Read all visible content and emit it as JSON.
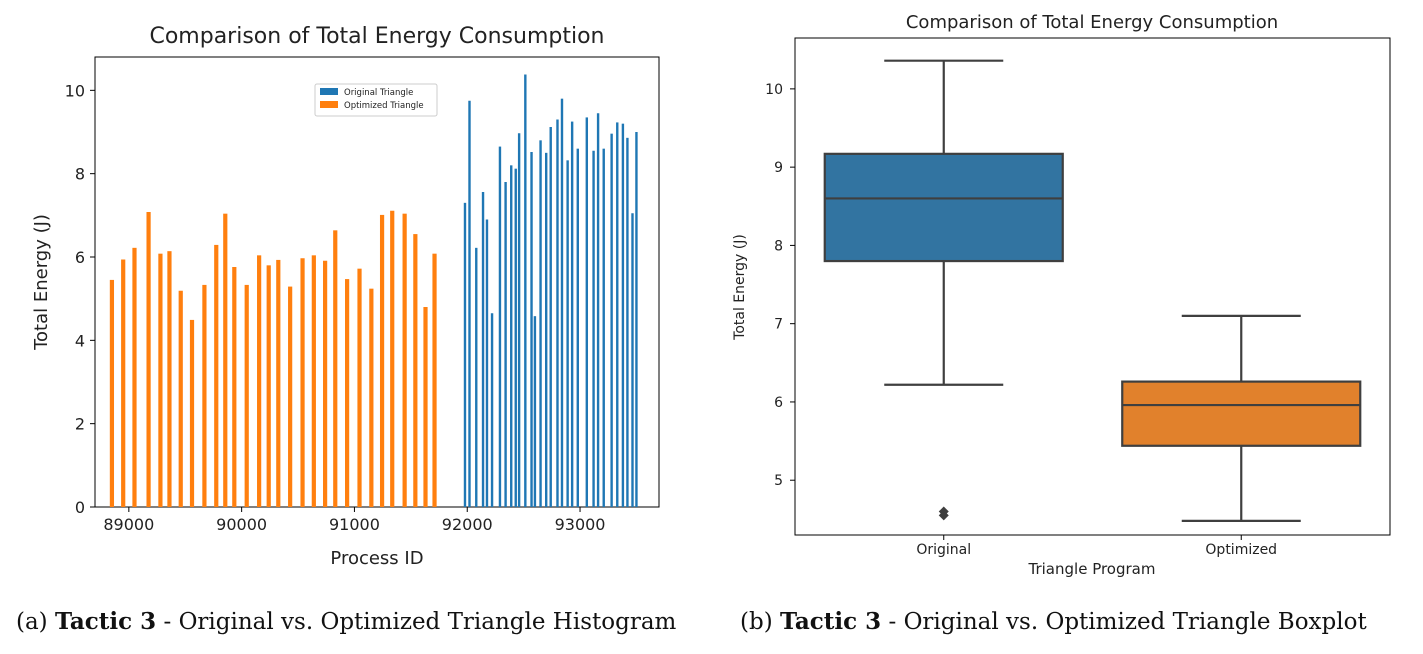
{
  "chart_data": [
    {
      "type": "bar",
      "title": "Comparison of Total Energy Consumption",
      "xlabel": "Process ID",
      "ylabel": "Total Energy (J)",
      "xlim": [
        88700,
        93700
      ],
      "ylim": [
        0,
        10.8
      ],
      "xticks": [
        89000,
        90000,
        91000,
        92000,
        93000
      ],
      "yticks": [
        0,
        2,
        4,
        6,
        8,
        10
      ],
      "legend_position": "upper center",
      "series": [
        {
          "name": "Original Triangle",
          "color": "#1f77b4",
          "x": [
            91980,
            92020,
            92080,
            92140,
            92175,
            92220,
            92290,
            92340,
            92390,
            92430,
            92460,
            92515,
            92570,
            92600,
            92650,
            92700,
            92740,
            92800,
            92840,
            92890,
            92930,
            92980,
            93060,
            93120,
            93160,
            93210,
            93280,
            93330,
            93380,
            93420,
            93465,
            93500
          ],
          "values": [
            7.3,
            9.75,
            6.22,
            7.56,
            6.9,
            4.65,
            8.65,
            7.8,
            8.2,
            8.12,
            8.97,
            10.38,
            8.52,
            4.58,
            8.8,
            8.5,
            9.12,
            9.3,
            9.8,
            8.32,
            9.25,
            8.6,
            9.35,
            8.55,
            9.45,
            8.6,
            8.96,
            9.23,
            9.2,
            8.86,
            7.05,
            9.0
          ]
        },
        {
          "name": "Optimized Triangle",
          "color": "#ff7f0e",
          "x": [
            88850,
            88950,
            89050,
            89175,
            89280,
            89360,
            89460,
            89560,
            89670,
            89775,
            89855,
            89935,
            90045,
            90155,
            90240,
            90325,
            90430,
            90540,
            90640,
            90740,
            90830,
            90935,
            91045,
            91150,
            91245,
            91335,
            91445,
            91540,
            91630,
            91710
          ],
          "values": [
            5.45,
            5.94,
            6.22,
            7.08,
            6.08,
            6.14,
            5.19,
            4.49,
            5.33,
            6.29,
            7.04,
            5.76,
            5.33,
            6.04,
            5.8,
            5.93,
            5.29,
            5.97,
            6.04,
            5.91,
            6.64,
            5.47,
            5.72,
            5.24,
            7.01,
            7.11,
            7.04,
            6.55,
            4.8,
            6.08
          ]
        }
      ]
    },
    {
      "type": "box",
      "title": "Comparison of Total Energy Consumption",
      "xlabel": "Triangle Program",
      "ylabel": "Total Energy (J)",
      "ylim": [
        4.3,
        10.65
      ],
      "yticks": [
        5,
        6,
        7,
        8,
        9,
        10
      ],
      "categories": [
        "Original",
        "Optimized"
      ],
      "boxes": [
        {
          "label": "Original",
          "color": "#3274a1",
          "whisker_low": 6.22,
          "q1": 7.8,
          "median": 8.6,
          "q3": 9.17,
          "whisker_high": 10.36,
          "outliers": [
            4.55,
            4.6
          ]
        },
        {
          "label": "Optimized",
          "color": "#e1812c",
          "whisker_low": 4.48,
          "q1": 5.44,
          "median": 5.96,
          "q3": 6.26,
          "whisker_high": 7.1,
          "outliers": []
        }
      ]
    }
  ],
  "captions": [
    {
      "prefix": "(a) ",
      "bold": "Tactic 3",
      "rest": " - Original vs. Optimized Triangle Histogram"
    },
    {
      "prefix": "(b) ",
      "bold": "Tactic 3",
      "rest": " - Original vs. Optimized Triangle Boxplot"
    }
  ]
}
